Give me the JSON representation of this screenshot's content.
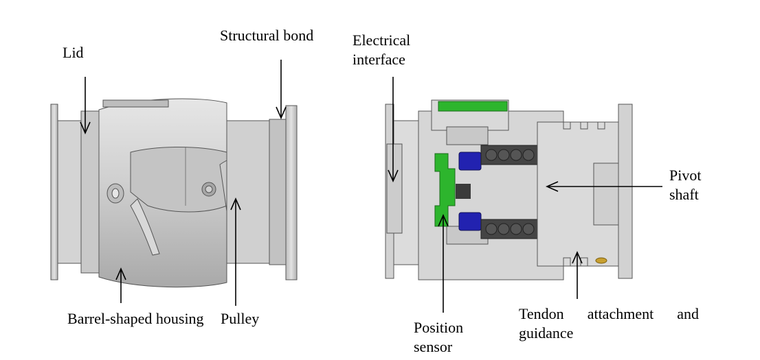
{
  "labels": {
    "lid": "Lid",
    "structural_bond": "Structural bond",
    "barrel_housing": "Barrel-shaped housing",
    "pulley": "Pulley",
    "electrical_interface": "Electrical interface",
    "pivot_shaft": "Pivot shaft",
    "position_sensor": "Position sensor",
    "tendon_attachment": "Tendon attachment and guidance"
  },
  "colors": {
    "sensor_pcb": "#2db52d",
    "magnet": "#2222b0",
    "bearing": "#444444",
    "metal_light": "#d8d8d8",
    "metal_mid": "#b8b8b8",
    "section_gray": "#d3d3d3",
    "screw_brass": "#c8a030"
  }
}
